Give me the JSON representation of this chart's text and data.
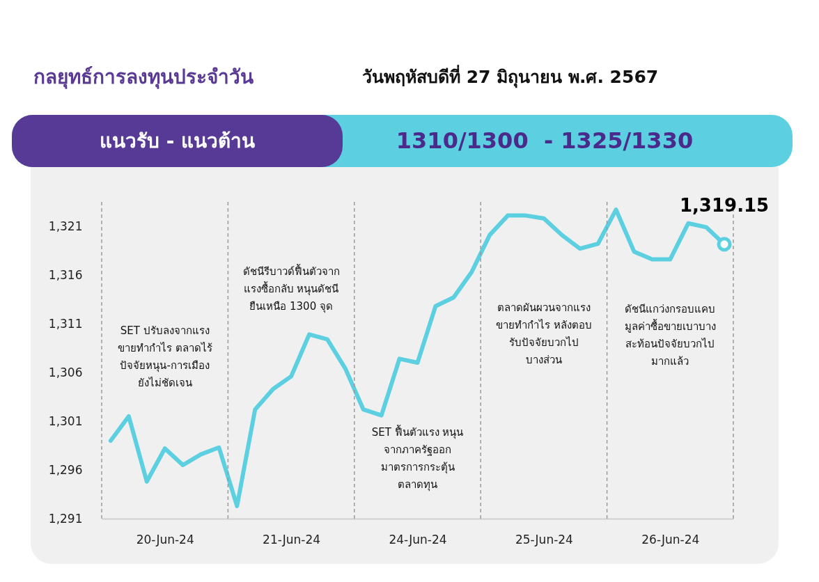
{
  "chart_data": {
    "type": "line",
    "title": "กลยุทธ์การลงทุนประจำวัน",
    "subtitle": "วันพฤหัสบดีที่ 27 มิถุนายน พ.ศ. 2567",
    "annotations": [
      "แนวรับ - แนวต้าน",
      "1310/1300  - 1325/1330",
      "SET ปรับลงจากแรง\nขายทำกำไร ตลาดไร้\nปัจจัยหนุน-การเมือง\nยังไม่ชัดเจน",
      "ดัชนีรีบาวด์ฟื้นตัวจาก\nแรงซื้อกลับ หนุนดัชนี\nยืนเหนือ 1300 จุด",
      "SET ฟื้นตัวแรง หนุน\nจากภาครัฐออก\nมาตรการกระตุ้น\nตลาดทุน",
      "ตลาดผันผวนจากแรง\nขายทำกำไร หลังตอบ\nรับปัจจัยบวกไป\nบางส่วน",
      "ดัชนีแกว่งกรอบแคบ\nมูลค่าซื้อขายเบาบาง\nสะท้อนปัจจัยบวกไป\nมากแล้ว",
      {
        "text": "1,319.15",
        "y": 1319.15
      }
    ],
    "categories": [
      null,
      null,
      null,
      "20-Jun-24",
      null,
      null,
      null,
      null,
      null,
      null,
      "21-Jun-24",
      null,
      null,
      null,
      null,
      null,
      null,
      "24-Jun-24",
      null,
      null,
      null,
      null,
      null,
      null,
      "25-Jun-24",
      null,
      null,
      null,
      null,
      null,
      null,
      "26-Jun-24",
      null,
      null,
      null
    ],
    "series": [
      {
        "color": "#5ccfe0",
        "values": [
          1299.0,
          1301.5,
          1294.8,
          1298.2,
          1296.5,
          1297.6,
          1298.3,
          1292.3,
          1302.2,
          1304.3,
          1305.6,
          1309.9,
          1309.4,
          1306.4,
          1302.2,
          1301.6,
          1307.4,
          1307.0,
          1312.8,
          1313.7,
          1316.3,
          1320.1,
          1322.1,
          1322.1,
          1321.8,
          1320.1,
          1318.7,
          1319.2,
          1322.7,
          1318.4,
          1317.6,
          1317.6,
          1321.3,
          1320.9,
          1319.15
        ]
      }
    ],
    "ylim": [
      1291,
      1323.5
    ],
    "yticks": [
      {
        "value": 1291,
        "label": "1,291"
      },
      {
        "value": 1296,
        "label": "1,296"
      },
      {
        "value": 1301,
        "label": "1,301"
      },
      {
        "value": 1306,
        "label": "1,306"
      },
      {
        "value": 1311,
        "label": "1,311"
      },
      {
        "value": 1316,
        "label": "1,316"
      },
      {
        "value": 1321,
        "label": "1,321"
      }
    ],
    "grid": false,
    "marker": "none",
    "line_style": "solid"
  }
}
